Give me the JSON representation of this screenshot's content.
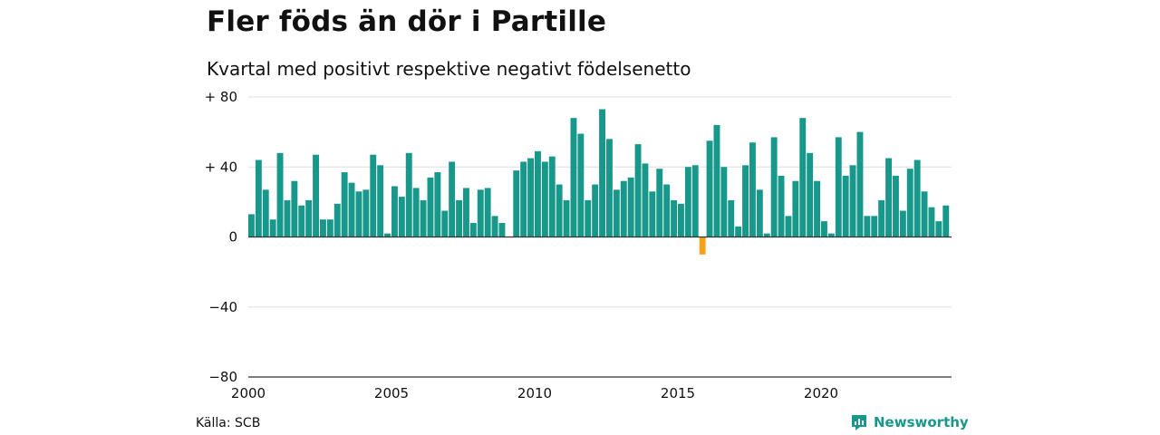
{
  "title": "Fler föds än dör i Partille",
  "subtitle": "Kvartal med positivt respektive negativt födelsenetto",
  "source": "Källa: SCB",
  "brand": "Newsworthy",
  "colors": {
    "positive": "#17988a",
    "negative": "#f5a21b",
    "brand": "#17988a",
    "grid": "#dddddd"
  },
  "chart_data": {
    "type": "bar",
    "title": "Fler föds än dör i Partille",
    "subtitle": "Kvartal med positivt respektive negativt födelsenetto",
    "ylim": [
      -80,
      80
    ],
    "y_ticks": [
      80,
      40,
      0,
      -40,
      -80
    ],
    "y_tick_labels": [
      "+ 80",
      "+ 40",
      "0",
      "−40",
      "−80"
    ],
    "x_ticks": [
      2000,
      2005,
      2010,
      2015,
      2020
    ],
    "x_tick_labels": [
      "2000",
      "2005",
      "2010",
      "2015",
      "2020"
    ],
    "start_year": 2000,
    "grid": true,
    "values": [
      13,
      44,
      27,
      10,
      48,
      21,
      32,
      18,
      21,
      47,
      10,
      10,
      19,
      37,
      31,
      26,
      27,
      47,
      41,
      2,
      29,
      23,
      48,
      28,
      21,
      34,
      37,
      15,
      43,
      21,
      28,
      8,
      27,
      28,
      12,
      8,
      0,
      38,
      43,
      45,
      49,
      43,
      46,
      30,
      21,
      68,
      59,
      21,
      30,
      73,
      56,
      27,
      32,
      34,
      53,
      42,
      26,
      39,
      30,
      21,
      19,
      40,
      41,
      -10,
      55,
      64,
      40,
      21,
      6,
      41,
      54,
      27,
      2,
      57,
      35,
      12,
      32,
      68,
      48,
      32,
      9,
      2,
      57,
      35,
      41,
      60,
      12,
      12,
      21,
      45,
      35,
      15,
      39,
      44,
      26,
      17,
      9,
      18
    ]
  }
}
